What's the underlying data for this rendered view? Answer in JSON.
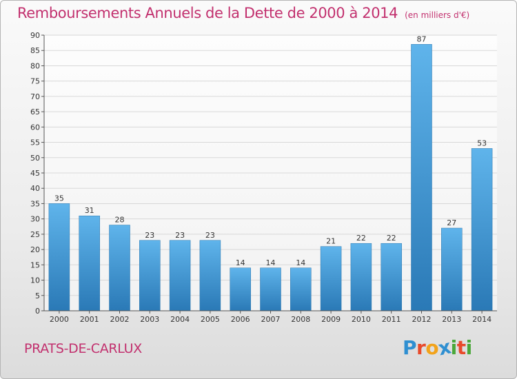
{
  "header": {
    "title": "Remboursements Annuels de la Dette de 2000 à 2014",
    "unit": "(en milliers d'€)"
  },
  "footer": {
    "location": "PRATS-DE-CARLUX",
    "brand": "Proxiti"
  },
  "brand_colors": [
    "#2f8fd1",
    "#e84a2b",
    "#f2a31b",
    "#2f8fd1",
    "#4aa83a",
    "#e84a2b",
    "#4aa83a"
  ],
  "chart_data": {
    "type": "bar",
    "title": "Remboursements Annuels de la Dette de 2000 à 2014",
    "subtitle": "(en milliers d'€)",
    "categories": [
      "2000",
      "2001",
      "2002",
      "2003",
      "2004",
      "2005",
      "2006",
      "2007",
      "2008",
      "2009",
      "2010",
      "2011",
      "2012",
      "2013",
      "2014"
    ],
    "values": [
      35,
      31,
      28,
      23,
      23,
      23,
      14,
      14,
      14,
      21,
      22,
      22,
      87,
      27,
      53
    ],
    "ylim": [
      0,
      90
    ],
    "yticks": [
      0,
      5,
      10,
      15,
      20,
      25,
      30,
      35,
      40,
      45,
      50,
      55,
      60,
      65,
      70,
      75,
      80,
      85,
      90
    ],
    "grid": true,
    "legend": "none",
    "bar_color_light": "#5eb3ea",
    "bar_color_dark": "#2a7ab8"
  }
}
